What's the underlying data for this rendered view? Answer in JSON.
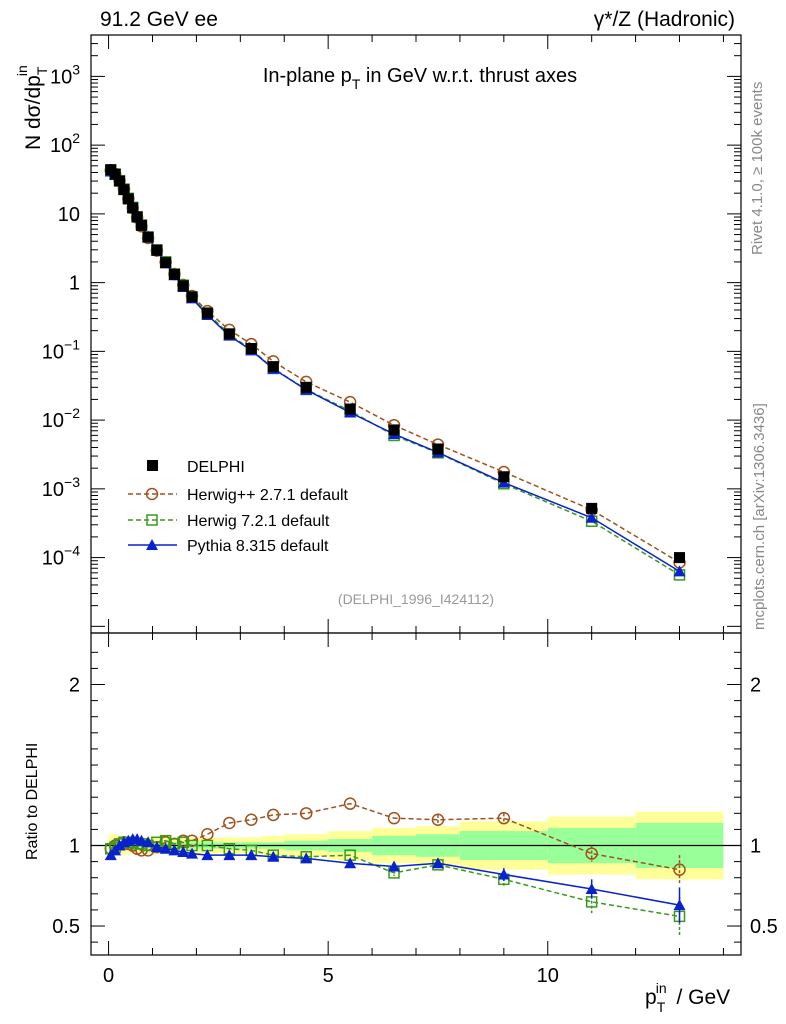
{
  "header": {
    "left": "91.2 GeV ee",
    "right": "γ*/Z (Hadronic)"
  },
  "side": {
    "rivet": "Rivet 4.1.0, ≥ 100k events",
    "mcplots": "mcplots.cern.ch [arXiv:1306.3436]"
  },
  "colors": {
    "data": "#000000",
    "herwigpp": "#a0521e",
    "herwig7": "#3a9a1a",
    "pythia": "#0a22cc",
    "band_outer": "#ffff99",
    "band_inner": "#99ff99"
  },
  "chart_data": {
    "type": "line",
    "title": "In-plane p_T in GeV w.r.t. thrust axes",
    "watermark": "(DELPHI_1996_I424112)",
    "ylabel_main": "N  dσ/dp_T^in",
    "ylabel_ratio": "Ratio to DELPHI",
    "xlabel": "p_T^in / GeV",
    "xlim": [
      -0.4,
      14.4
    ],
    "ylim_main": [
      8e-06,
      4000
    ],
    "ylim_ratio": [
      0.32,
      2.32
    ],
    "x_ticks": [
      "0",
      "5",
      "10"
    ],
    "y_ticks_main": [
      "10^-4",
      "10^-3",
      "10^-2",
      "10^-1",
      "1",
      "10",
      "10^2",
      "10^3"
    ],
    "y_ticks_ratio": [
      "0.5",
      "1",
      "2"
    ],
    "legend": [
      "DELPHI",
      "Herwig++ 2.7.1 default",
      "Herwig 7.2.1 default",
      "Pythia 8.315 default"
    ],
    "x": [
      0.05,
      0.15,
      0.25,
      0.35,
      0.45,
      0.55,
      0.65,
      0.75,
      0.9,
      1.1,
      1.3,
      1.5,
      1.7,
      1.9,
      2.25,
      2.75,
      3.25,
      3.75,
      4.5,
      5.5,
      6.5,
      7.5,
      9.0,
      11.0,
      13.0
    ],
    "data_values": [
      44,
      38,
      30,
      22.5,
      16.5,
      12.2,
      9.0,
      6.8,
      4.6,
      2.95,
      1.95,
      1.32,
      0.9,
      0.62,
      0.36,
      0.18,
      0.11,
      0.06,
      0.03,
      0.0145,
      0.0072,
      0.0038,
      0.0015,
      0.00052,
      0.0001
    ],
    "band_edges": [
      0.0,
      0.1,
      0.2,
      0.3,
      0.4,
      0.5,
      0.6,
      0.7,
      0.8,
      1.0,
      1.2,
      1.4,
      1.6,
      1.8,
      2.0,
      2.5,
      3.0,
      3.5,
      4.0,
      5.0,
      6.0,
      7.0,
      8.0,
      10.0,
      12.0,
      14.0
    ],
    "band_stat": [
      0.02,
      0.02,
      0.02,
      0.02,
      0.02,
      0.02,
      0.02,
      0.02,
      0.02,
      0.02,
      0.02,
      0.02,
      0.02,
      0.02,
      0.02,
      0.02,
      0.02,
      0.02,
      0.03,
      0.04,
      0.06,
      0.07,
      0.09,
      0.11,
      0.14
    ],
    "band_total": [
      0.07,
      0.07,
      0.06,
      0.06,
      0.05,
      0.05,
      0.05,
      0.05,
      0.05,
      0.05,
      0.05,
      0.05,
      0.05,
      0.05,
      0.05,
      0.05,
      0.05,
      0.06,
      0.07,
      0.09,
      0.11,
      0.12,
      0.15,
      0.18,
      0.21
    ],
    "series": [
      {
        "name": "Herwig++ 2.7.1 default",
        "marker": "circle",
        "dashed": true,
        "ratio": [
          0.98,
          1.0,
          1.01,
          1.02,
          1.01,
          1.0,
          0.98,
          0.97,
          0.97,
          0.99,
          1.02,
          1.01,
          1.03,
          1.03,
          1.07,
          1.14,
          1.16,
          1.19,
          1.2,
          1.26,
          1.17,
          1.16,
          1.17,
          0.95,
          0.85
        ],
        "ratio_err": [
          0,
          0,
          0,
          0,
          0,
          0,
          0,
          0,
          0,
          0,
          0,
          0,
          0,
          0,
          0,
          0,
          0,
          0,
          0,
          0,
          0,
          0.03,
          0.03,
          0.05,
          0.09
        ]
      },
      {
        "name": "Herwig 7.2.1 default",
        "marker": "square",
        "dashed": true,
        "ratio": [
          0.98,
          0.99,
          1.01,
          1.02,
          1.02,
          1.02,
          1.01,
          1.01,
          1.0,
          1.02,
          1.03,
          1.01,
          1.02,
          1.0,
          1.0,
          0.98,
          0.97,
          0.94,
          0.93,
          0.94,
          0.83,
          0.88,
          0.79,
          0.65,
          0.56
        ],
        "ratio_err": [
          0,
          0,
          0,
          0,
          0,
          0,
          0,
          0,
          0,
          0,
          0,
          0,
          0,
          0,
          0,
          0,
          0,
          0,
          0,
          0,
          0.02,
          0.03,
          0.04,
          0.07,
          0.12
        ]
      },
      {
        "name": "Pythia 8.315 default",
        "marker": "triangle",
        "dashed": false,
        "ratio": [
          0.94,
          0.97,
          1.0,
          1.02,
          1.03,
          1.04,
          1.04,
          1.03,
          1.02,
          0.99,
          0.98,
          0.97,
          0.96,
          0.95,
          0.94,
          0.94,
          0.94,
          0.93,
          0.92,
          0.89,
          0.87,
          0.89,
          0.82,
          0.73,
          0.63
        ],
        "ratio_err": [
          0,
          0,
          0,
          0,
          0,
          0,
          0,
          0,
          0,
          0,
          0,
          0,
          0,
          0,
          0,
          0,
          0,
          0,
          0,
          0,
          0.02,
          0.03,
          0.04,
          0.06,
          0.11
        ]
      }
    ]
  }
}
